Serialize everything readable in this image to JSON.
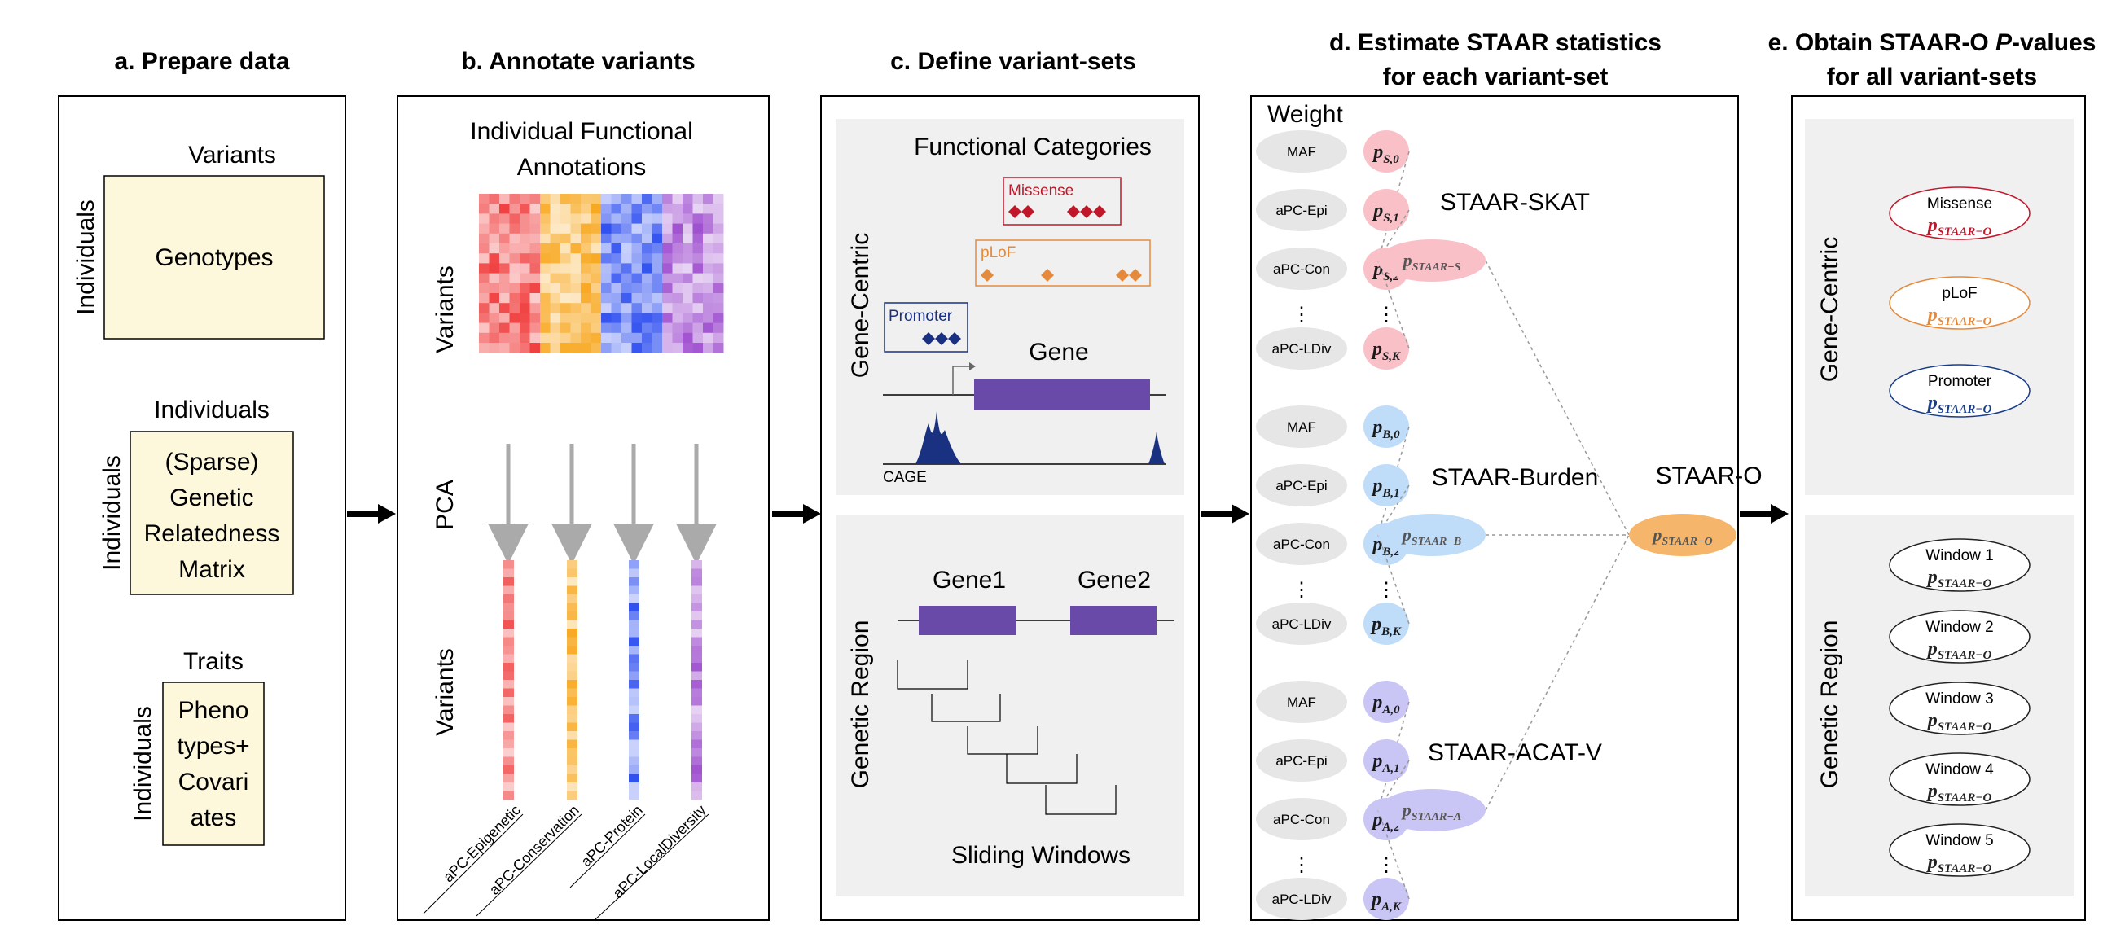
{
  "panels": {
    "a": {
      "header": "a. Prepare data",
      "variants_title": "Variants",
      "genotypes": "Genotypes",
      "individuals_row": "Individuals",
      "individuals_top": "Individuals",
      "grm_lines": [
        "(Sparse)",
        "Genetic",
        "Relatedness",
        "Matrix"
      ],
      "traits_title": "Traits",
      "traits_lines": [
        "Pheno",
        "types+",
        "Covari",
        "ates"
      ]
    },
    "b": {
      "header": "b. Annotate variants",
      "title_lines": [
        "Individual Functional",
        "Annotations"
      ],
      "variants_label": "Variants",
      "pca_label": "PCA",
      "variants_label2": "Variants",
      "apc_labels": [
        "aPC-Epigenetic",
        "aPC-Conservation",
        "aPC-Protein",
        "aPC-LocalDiversity"
      ]
    },
    "c": {
      "header": "c. Define variant-sets",
      "functional_categories": "Functional Categories",
      "gene_centric": "Gene-Centric",
      "missense": "Missense",
      "plof": "pLoF",
      "promoter": "Promoter",
      "gene": "Gene",
      "cage": "CAGE",
      "genetic_region": "Genetic Region",
      "gene1": "Gene1",
      "gene2": "Gene2",
      "sliding_windows": "Sliding Windows"
    },
    "d": {
      "header_lines": [
        "d. Estimate STAAR statistics",
        "for each variant-set"
      ],
      "weight": "Weight",
      "weights": [
        "MAF",
        "aPC-Epi",
        "aPC-Con",
        "⋮",
        "aPC-LDiv"
      ],
      "groups": [
        {
          "name": "STAAR-SKAT",
          "sym": "S",
          "combined_sub": "STAAR−S",
          "color": "#f9c0c8",
          "ccolor": "#f9c0c8",
          "text": "#b01030"
        },
        {
          "name": "STAAR-Burden",
          "sym": "B",
          "combined_sub": "STAAR−B",
          "color": "#bfdcf8",
          "ccolor": "#bfdcf8",
          "text": "#1a4a8a"
        },
        {
          "name": "STAAR-ACAT-V",
          "sym": "A",
          "combined_sub": "STAAR−A",
          "color": "#c9c6f5",
          "ccolor": "#c9c6f5",
          "text": "#3a2f8f"
        }
      ],
      "p_subs": [
        "0",
        "1",
        "2",
        "K"
      ],
      "staar_o": "STAAR-O",
      "staar_o_sub": "STAAR−O",
      "p_letter": "p"
    },
    "e": {
      "header_lines": [
        "e. Obtain STAAR-O P-values",
        "for all variant-sets"
      ],
      "gene_centric": "Gene-Centric",
      "genetic_region": "Genetic Region",
      "gc_items": [
        {
          "name": "Missense",
          "color": "#c0182a"
        },
        {
          "name": "pLoF",
          "color": "#e58a3c"
        },
        {
          "name": "Promoter",
          "color": "#1a3d8a"
        }
      ],
      "windows": [
        "Window 1",
        "Window 2",
        "Window 3",
        "Window 4",
        "Window 5"
      ],
      "p_sub": "STAAR−O"
    }
  },
  "colors": {
    "cream": "#fdf8dc",
    "panel_gray": "#f0f0f0",
    "red": "#f04040",
    "orange": "#f8a820",
    "blue": "#3050f0",
    "purple": "#a050d0",
    "gene_bar": "#6a4aa8",
    "navy": "#1a3080",
    "staar_o_fill": "#f5b56a"
  }
}
